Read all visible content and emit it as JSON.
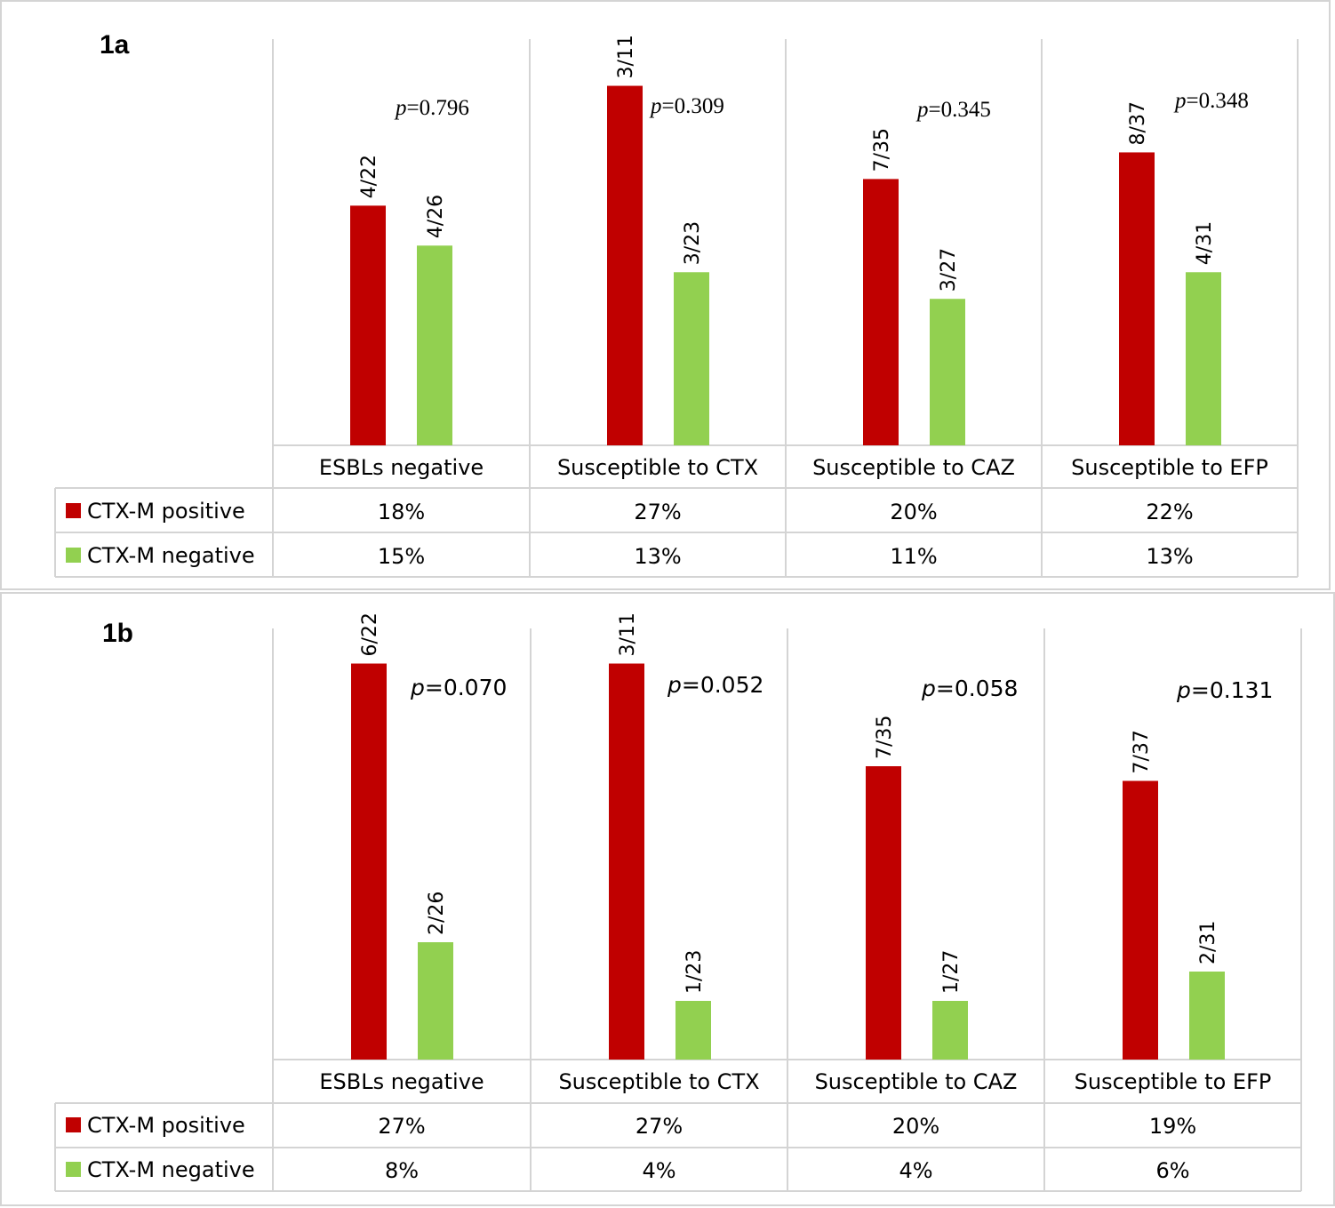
{
  "colors": {
    "positive": "#c00000",
    "negative": "#92d050",
    "grid": "#d4d4d4"
  },
  "chart_data": [
    {
      "type": "bar",
      "title": "1a",
      "categories": [
        "ESBLs negative",
        "Susceptible to CTX",
        "Susceptible to CAZ",
        "Susceptible to EFP"
      ],
      "ylim": [
        0,
        28
      ],
      "series": [
        {
          "name": "CTX-M positive",
          "color": "#c00000",
          "values": [
            18,
            27,
            20,
            22
          ],
          "table": [
            "18%",
            "27%",
            "20%",
            "22%"
          ],
          "fractions": [
            "4/22",
            "3/11",
            "7/35",
            "8/37"
          ]
        },
        {
          "name": "CTX-M negative",
          "color": "#92d050",
          "values": [
            15,
            13,
            11,
            13
          ],
          "table": [
            "15%",
            "13%",
            "11%",
            "13%"
          ],
          "fractions": [
            "4/26",
            "3/23",
            "3/27",
            "4/31"
          ]
        }
      ],
      "p_prefix": "p",
      "p_values": [
        "=0.796",
        "=0.309",
        "=0.345",
        "=0.348"
      ]
    },
    {
      "type": "bar",
      "title": "1b",
      "categories": [
        "ESBLs negative",
        "Susceptible to CTX",
        "Susceptible to CAZ",
        "Susceptible to EFP"
      ],
      "ylim": [
        0,
        28
      ],
      "series": [
        {
          "name": "CTX-M positive",
          "color": "#c00000",
          "values": [
            27,
            27,
            20,
            19
          ],
          "table": [
            "27%",
            "27%",
            "20%",
            "19%"
          ],
          "fractions": [
            "6/22",
            "3/11",
            "7/35",
            "7/37"
          ]
        },
        {
          "name": "CTX-M negative",
          "color": "#92d050",
          "values": [
            8,
            4,
            4,
            6
          ],
          "table": [
            "8%",
            "4%",
            "4%",
            "6%"
          ],
          "fractions": [
            "2/26",
            "1/23",
            "1/27",
            "2/31"
          ]
        }
      ],
      "p_prefix": "p",
      "p_values": [
        "=0.070",
        "=0.052",
        "=0.058",
        "=0.131"
      ]
    }
  ]
}
